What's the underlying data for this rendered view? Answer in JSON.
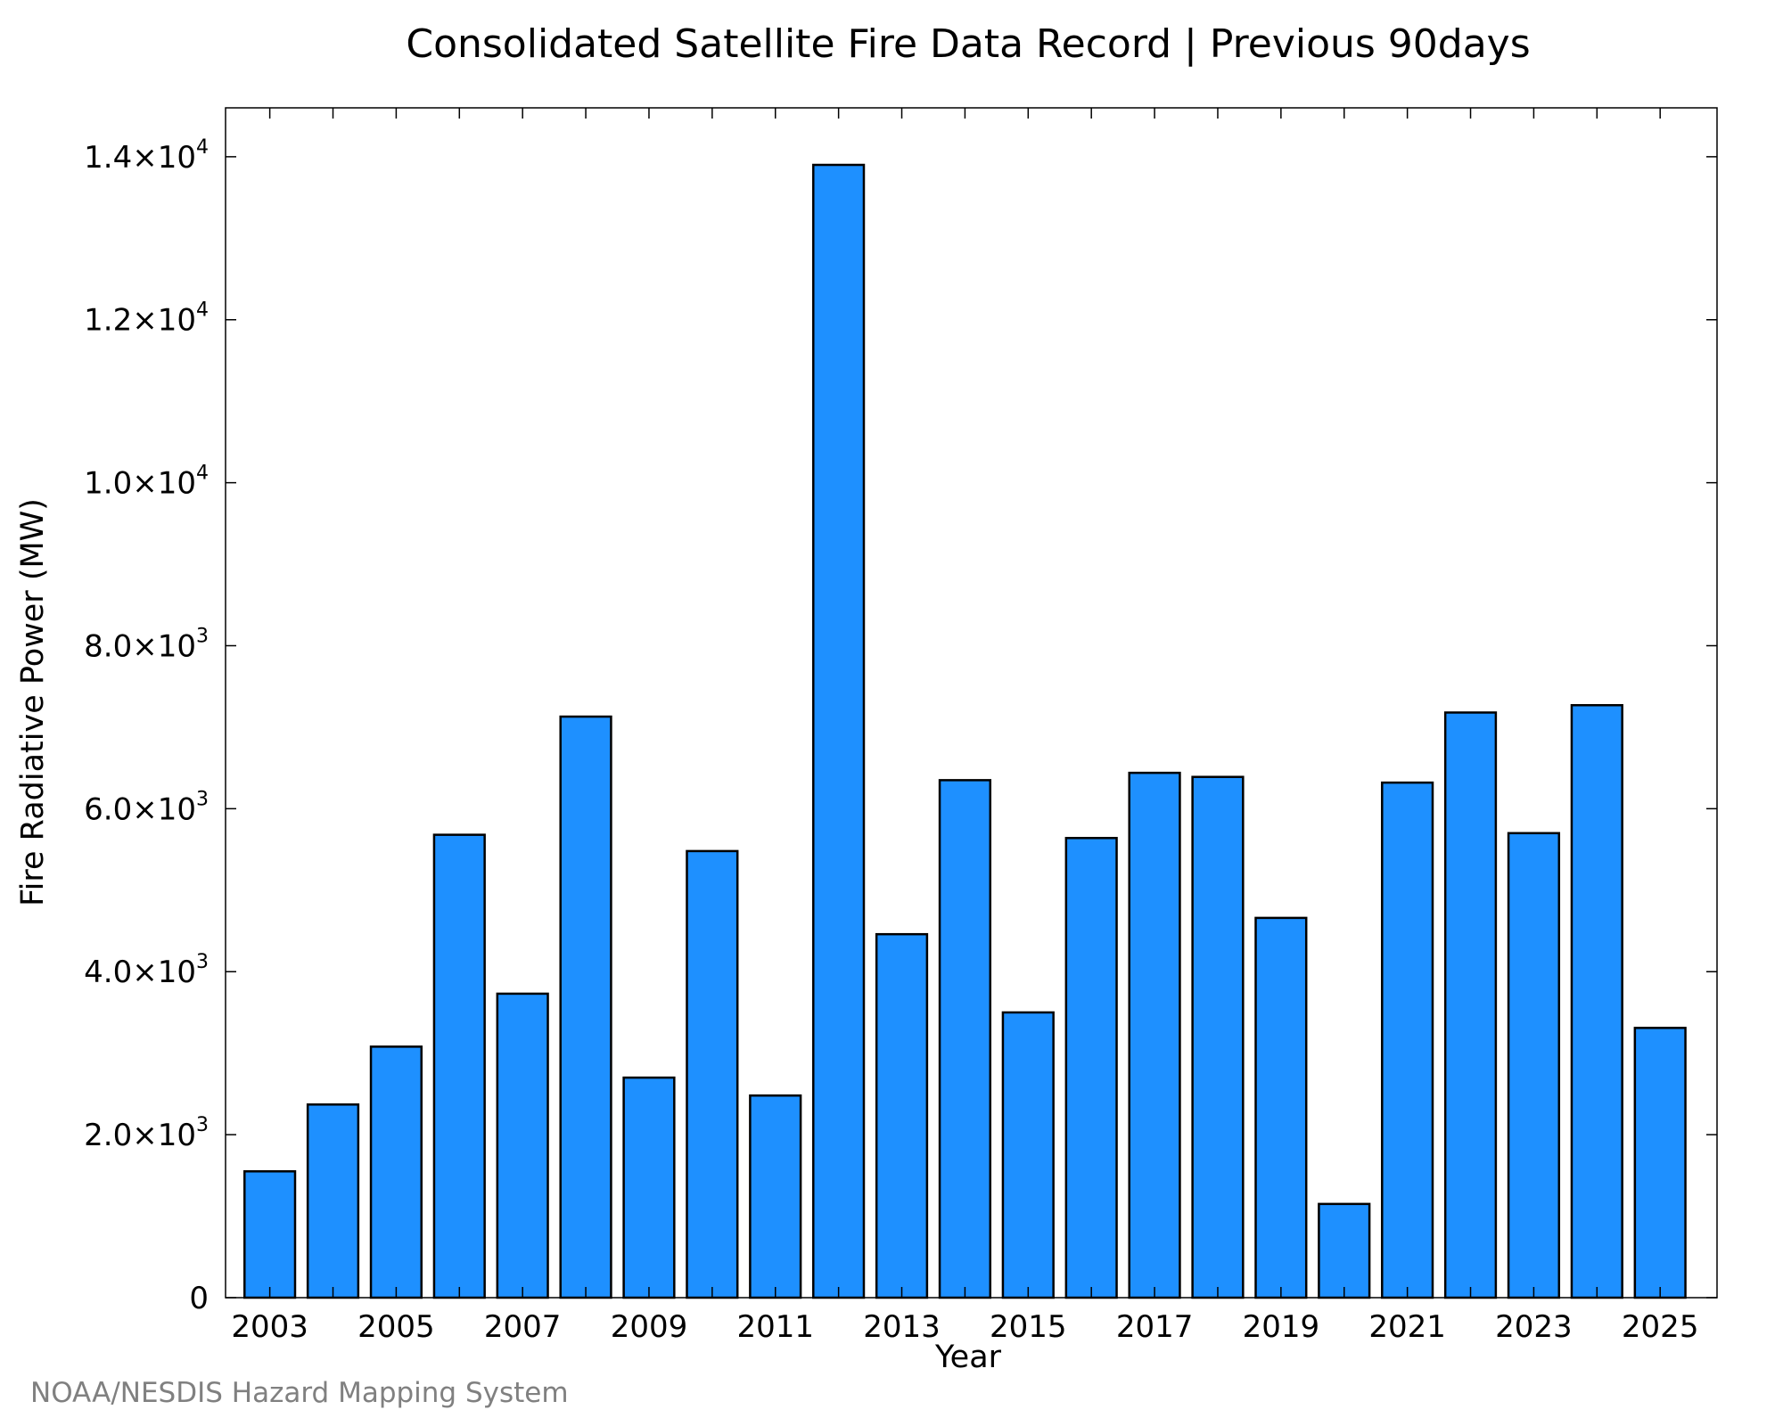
{
  "chart_data": {
    "type": "bar",
    "title": "Consolidated Satellite Fire Data Record | Previous 90days",
    "xlabel": "Year",
    "ylabel": "Fire Radiative Power (MW)",
    "credit": "NOAA/NESDIS Hazard Mapping System",
    "categories": [
      "2003",
      "2004",
      "2005",
      "2006",
      "2007",
      "2008",
      "2009",
      "2010",
      "2011",
      "2012",
      "2013",
      "2014",
      "2015",
      "2016",
      "2017",
      "2018",
      "2019",
      "2020",
      "2021",
      "2022",
      "2023",
      "2024",
      "2025"
    ],
    "values": [
      1550,
      2370,
      3080,
      5680,
      3730,
      7130,
      2700,
      5480,
      2480,
      13900,
      4460,
      6350,
      3500,
      5640,
      6440,
      6390,
      4660,
      1150,
      6320,
      7180,
      5700,
      7270,
      3310
    ],
    "x_tick_labels": [
      "2003",
      "2005",
      "2007",
      "2009",
      "2011",
      "2013",
      "2015",
      "2017",
      "2019",
      "2021",
      "2023",
      "2025"
    ],
    "y_ticks": [
      {
        "value": 0,
        "mantissa": "0",
        "exponent": ""
      },
      {
        "value": 2000,
        "mantissa": "2.0×10",
        "exponent": "3"
      },
      {
        "value": 4000,
        "mantissa": "4.0×10",
        "exponent": "3"
      },
      {
        "value": 6000,
        "mantissa": "6.0×10",
        "exponent": "3"
      },
      {
        "value": 8000,
        "mantissa": "8.0×10",
        "exponent": "3"
      },
      {
        "value": 10000,
        "mantissa": "1.0×10",
        "exponent": "4"
      },
      {
        "value": 12000,
        "mantissa": "1.2×10",
        "exponent": "4"
      },
      {
        "value": 14000,
        "mantissa": "1.4×10",
        "exponent": "4"
      }
    ],
    "xlim": [
      2002.3,
      2025.9
    ],
    "ylim": [
      0,
      14600
    ],
    "grid": false,
    "legend": "none",
    "bar_color": "#1e90ff",
    "edge_color": "#000000"
  }
}
